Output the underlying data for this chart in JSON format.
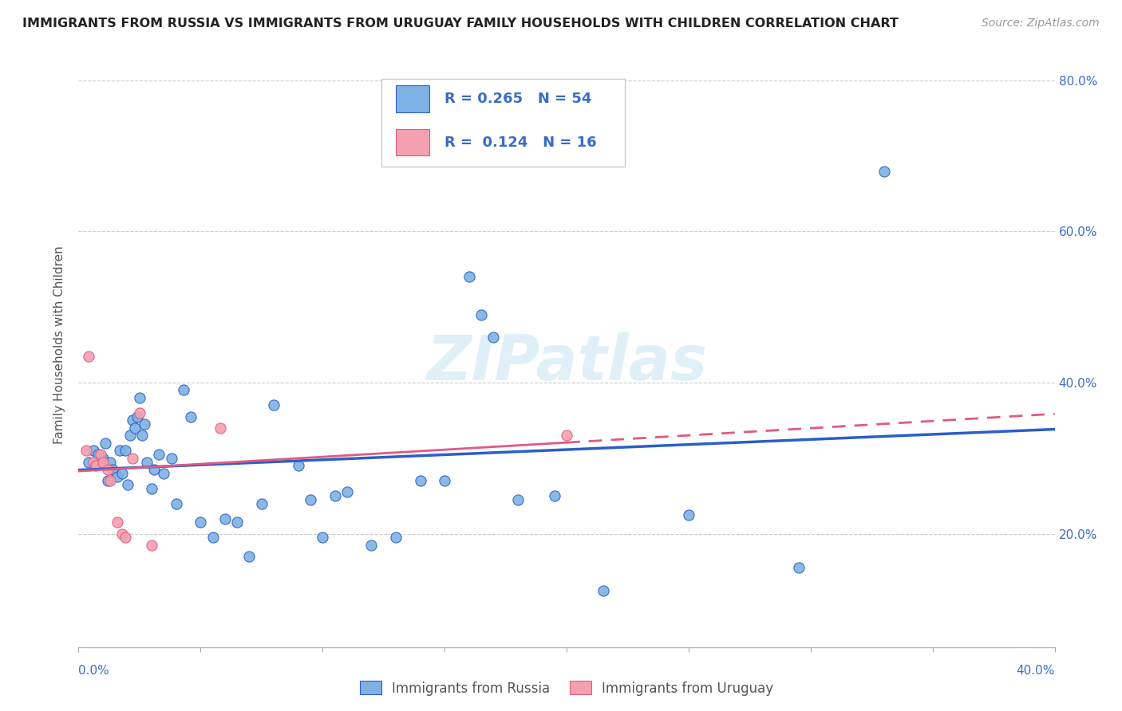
{
  "title": "IMMIGRANTS FROM RUSSIA VS IMMIGRANTS FROM URUGUAY FAMILY HOUSEHOLDS WITH CHILDREN CORRELATION CHART",
  "source": "Source: ZipAtlas.com",
  "ylabel": "Family Households with Children",
  "legend_bottom": [
    "Immigrants from Russia",
    "Immigrants from Uruguay"
  ],
  "r_russia": 0.265,
  "n_russia": 54,
  "r_uruguay": 0.124,
  "n_uruguay": 16,
  "xlim": [
    0.0,
    0.4
  ],
  "ylim": [
    0.05,
    0.85
  ],
  "yticks": [
    0.2,
    0.4,
    0.6,
    0.8
  ],
  "xticks": [
    0.0,
    0.05,
    0.1,
    0.15,
    0.2,
    0.25,
    0.3,
    0.35,
    0.4
  ],
  "color_russia": "#7EB2E4",
  "color_uruguay": "#F4A0B0",
  "trendline_russia": "#2B5FC7",
  "trendline_uruguay": "#E05A80",
  "russia_x": [
    0.004,
    0.006,
    0.008,
    0.01,
    0.011,
    0.012,
    0.013,
    0.014,
    0.016,
    0.017,
    0.018,
    0.019,
    0.02,
    0.021,
    0.022,
    0.023,
    0.024,
    0.025,
    0.026,
    0.027,
    0.028,
    0.03,
    0.031,
    0.033,
    0.035,
    0.038,
    0.04,
    0.043,
    0.046,
    0.05,
    0.055,
    0.06,
    0.065,
    0.07,
    0.075,
    0.08,
    0.09,
    0.095,
    0.1,
    0.105,
    0.11,
    0.12,
    0.13,
    0.14,
    0.15,
    0.16,
    0.165,
    0.17,
    0.18,
    0.195,
    0.215,
    0.25,
    0.295,
    0.33
  ],
  "russia_y": [
    0.295,
    0.31,
    0.305,
    0.3,
    0.32,
    0.27,
    0.295,
    0.285,
    0.275,
    0.31,
    0.28,
    0.31,
    0.265,
    0.33,
    0.35,
    0.34,
    0.355,
    0.38,
    0.33,
    0.345,
    0.295,
    0.26,
    0.285,
    0.305,
    0.28,
    0.3,
    0.24,
    0.39,
    0.355,
    0.215,
    0.195,
    0.22,
    0.215,
    0.17,
    0.24,
    0.37,
    0.29,
    0.245,
    0.195,
    0.25,
    0.255,
    0.185,
    0.195,
    0.27,
    0.27,
    0.54,
    0.49,
    0.46,
    0.245,
    0.25,
    0.125,
    0.225,
    0.155,
    0.68
  ],
  "uruguay_x": [
    0.003,
    0.004,
    0.006,
    0.007,
    0.009,
    0.01,
    0.012,
    0.013,
    0.016,
    0.018,
    0.019,
    0.022,
    0.025,
    0.03,
    0.058,
    0.2
  ],
  "uruguay_y": [
    0.31,
    0.435,
    0.295,
    0.29,
    0.305,
    0.295,
    0.285,
    0.27,
    0.215,
    0.2,
    0.195,
    0.3,
    0.36,
    0.185,
    0.34,
    0.33
  ],
  "watermark": "ZIPatlas",
  "background_color": "#ffffff",
  "grid_color": "#cccccc"
}
